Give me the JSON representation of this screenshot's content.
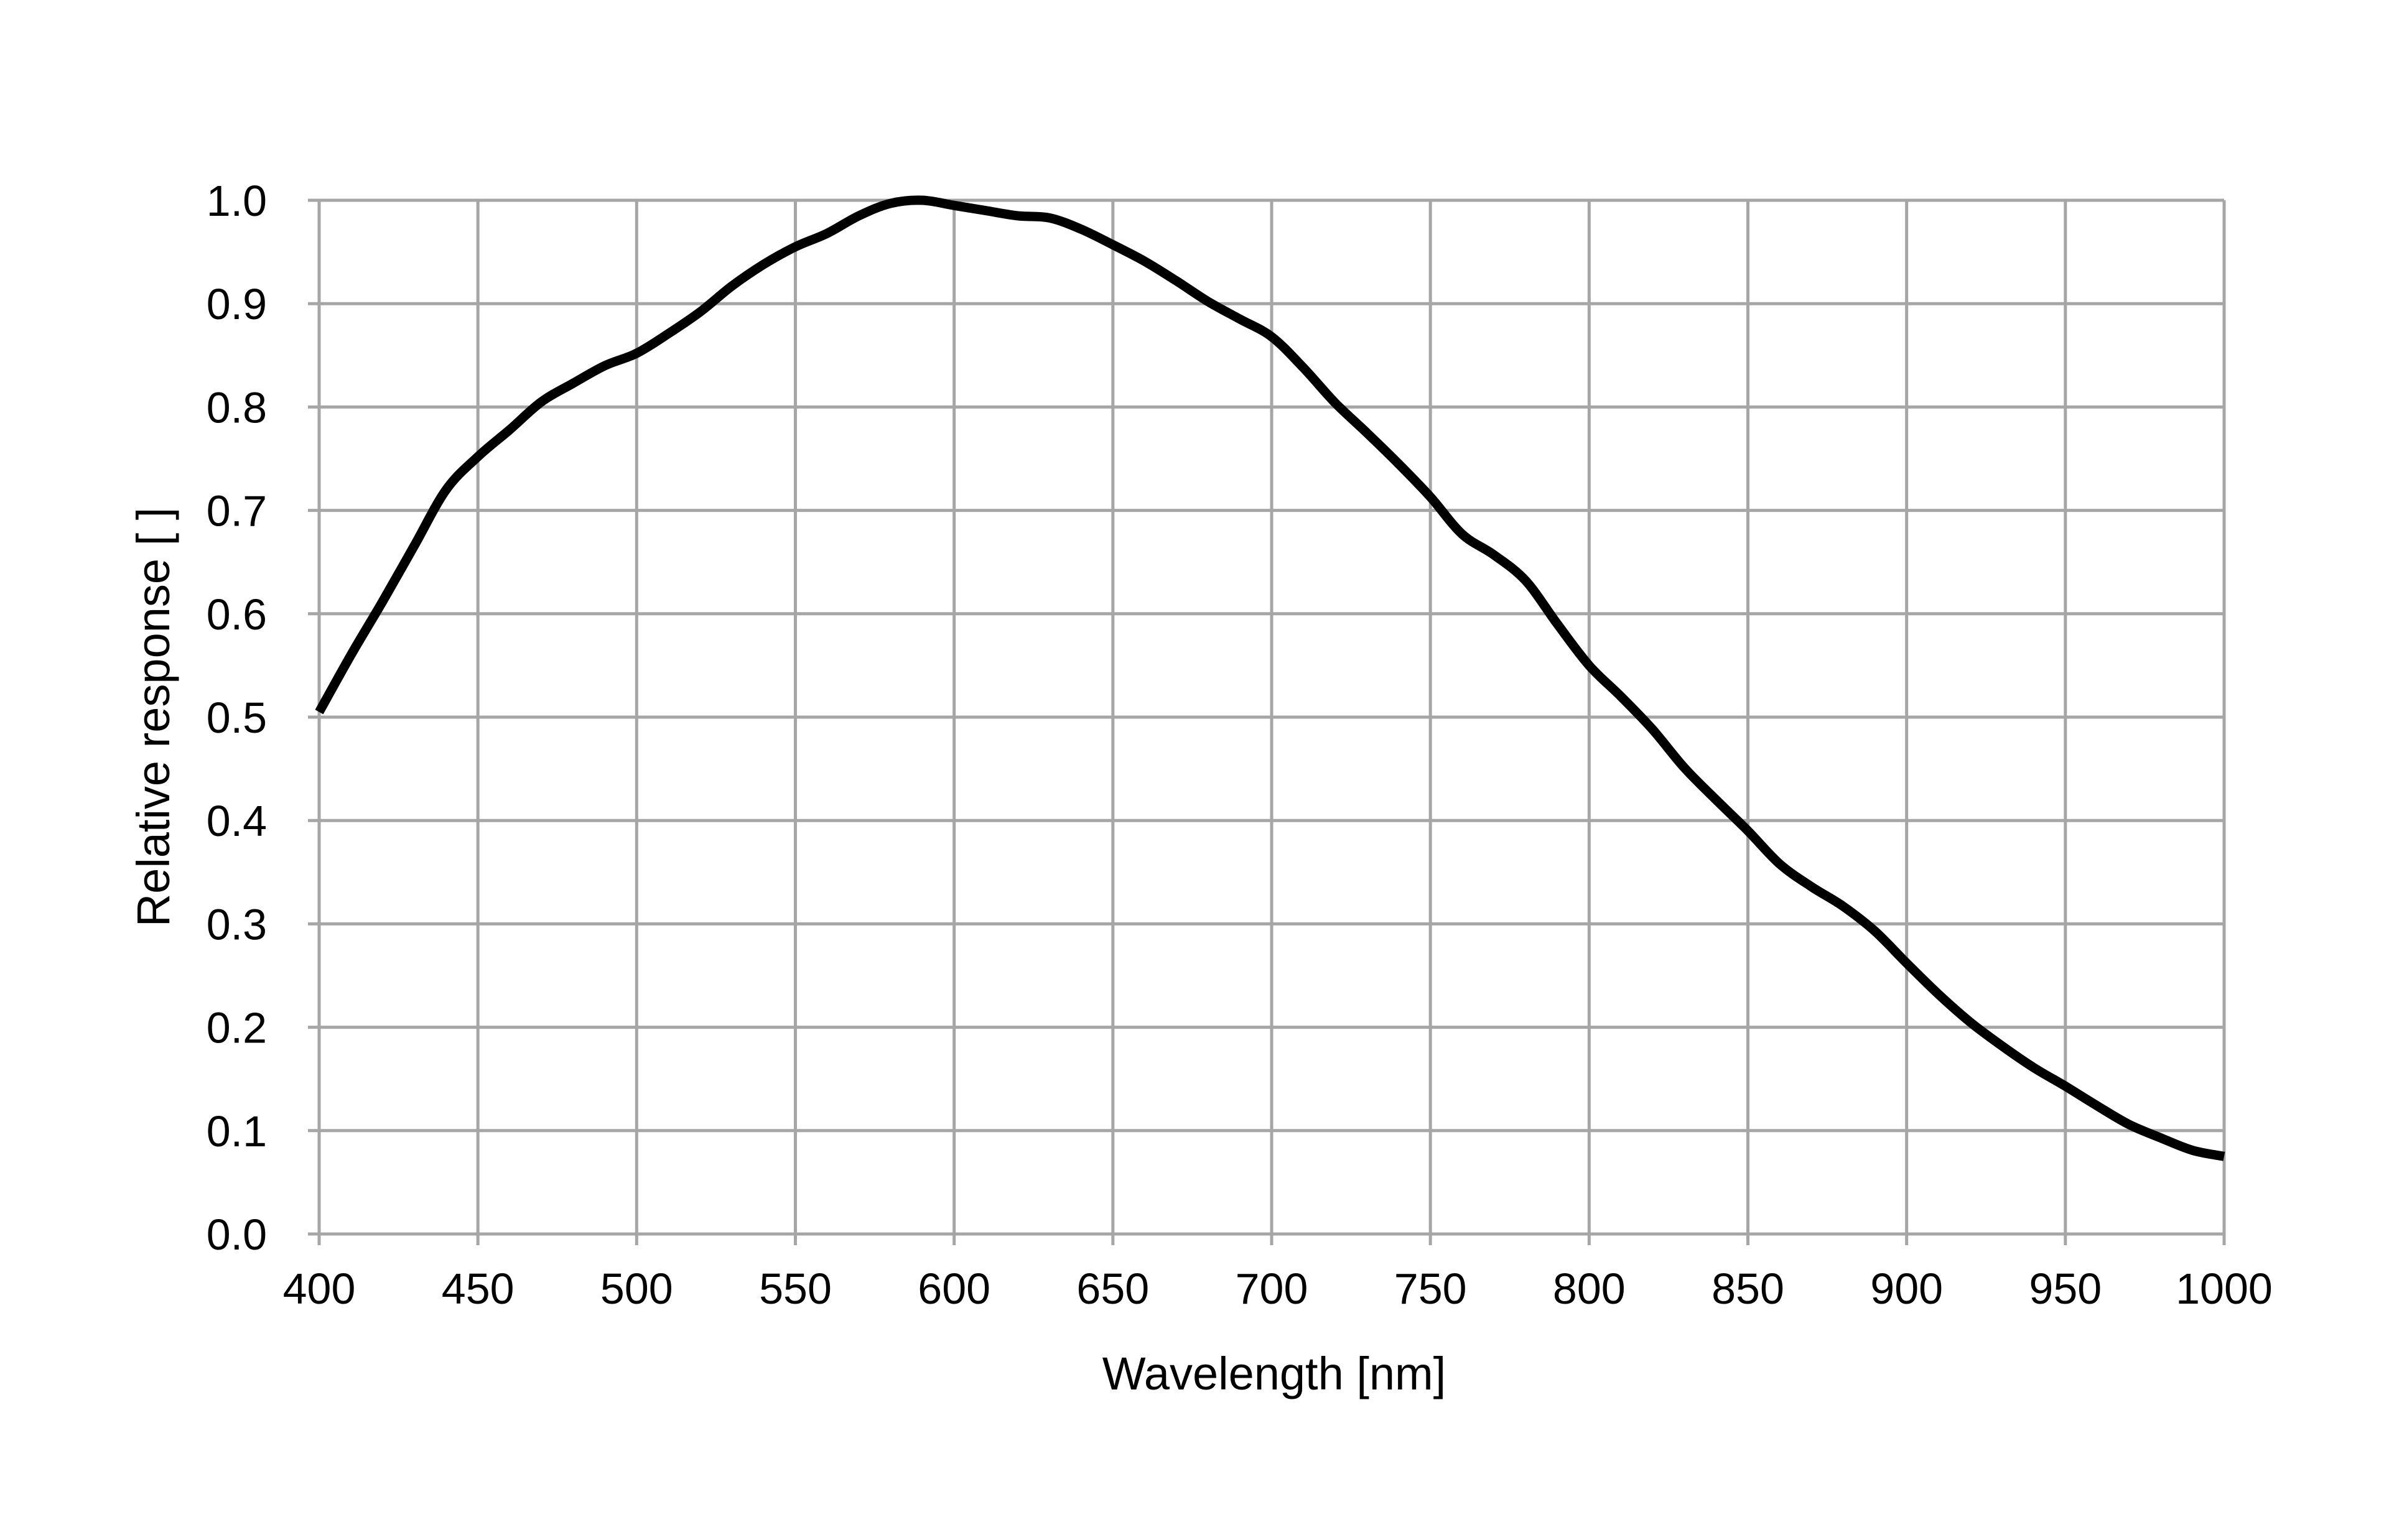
{
  "chart_data": {
    "type": "line",
    "title": "",
    "xlabel": "Wavelength [nm]",
    "ylabel": "Relative response [ ]",
    "xlim": [
      400,
      1000
    ],
    "ylim": [
      0.0,
      1.0
    ],
    "grid": true,
    "legend": "none",
    "x_ticks": [
      "400",
      "450",
      "500",
      "550",
      "600",
      "650",
      "700",
      "750",
      "800",
      "850",
      "900",
      "950",
      "1000"
    ],
    "y_ticks": [
      "0.0",
      "0.1",
      "0.2",
      "0.3",
      "0.4",
      "0.5",
      "0.6",
      "0.7",
      "0.8",
      "0.9",
      "1.0"
    ],
    "colors": {
      "line": "#000000",
      "grid": "#a6a6a6",
      "text": "#000000",
      "background": "#ffffff"
    },
    "series": [
      {
        "x": [
          400,
          410,
          420,
          430,
          440,
          450,
          460,
          470,
          480,
          490,
          500,
          510,
          520,
          530,
          540,
          550,
          560,
          570,
          580,
          590,
          600,
          610,
          620,
          630,
          640,
          650,
          660,
          670,
          680,
          690,
          700,
          710,
          720,
          730,
          740,
          750,
          760,
          770,
          780,
          790,
          800,
          810,
          820,
          830,
          840,
          850,
          860,
          870,
          880,
          890,
          900,
          910,
          920,
          930,
          940,
          950,
          960,
          970,
          980,
          990,
          1000
        ],
        "y": [
          0.505,
          0.56,
          0.612,
          0.666,
          0.72,
          0.752,
          0.778,
          0.805,
          0.823,
          0.84,
          0.852,
          0.871,
          0.892,
          0.917,
          0.938,
          0.955,
          0.968,
          0.985,
          0.997,
          1.0,
          0.995,
          0.99,
          0.985,
          0.983,
          0.972,
          0.957,
          0.941,
          0.922,
          0.902,
          0.885,
          0.868,
          0.838,
          0.804,
          0.775,
          0.745,
          0.713,
          0.677,
          0.657,
          0.632,
          0.59,
          0.55,
          0.52,
          0.488,
          0.451,
          0.42,
          0.39,
          0.358,
          0.336,
          0.317,
          0.293,
          0.262,
          0.232,
          0.205,
          0.182,
          0.161,
          0.143,
          0.124,
          0.106,
          0.093,
          0.081,
          0.075
        ]
      }
    ]
  }
}
